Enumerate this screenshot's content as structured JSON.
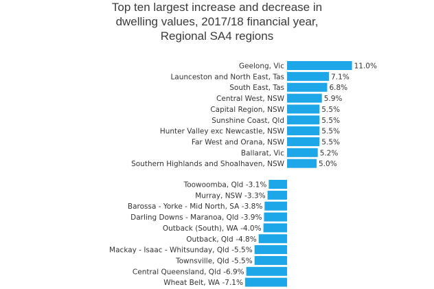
{
  "chart_data": {
    "type": "bar",
    "orientation": "horizontal",
    "title_lines": [
      "Top ten largest increase and decrease in",
      "dwelling values, 2017/18 financial year,",
      "Regional SA4 regions"
    ],
    "xlabel": "",
    "ylabel": "",
    "bar_color": "#1ea7e8",
    "grid": false,
    "legend": "none",
    "groups": [
      {
        "categories": [
          "Geelong, Vic",
          "Launceston and North East, Tas",
          "South East, Tas",
          "Central West, NSW",
          "Capital Region, NSW",
          "Sunshine Coast, Qld",
          "Hunter Valley exc Newcastle, NSW",
          "Far West and Orana, NSW",
          "Ballarat, Vic",
          "Southern Highlands and Shoalhaven, NSW"
        ],
        "values": [
          11.0,
          7.1,
          6.8,
          5.9,
          5.5,
          5.5,
          5.5,
          5.5,
          5.2,
          5.0
        ],
        "labels": [
          "11.0%",
          "7.1%",
          "6.8%",
          "5.9%",
          "5.5%",
          "5.5%",
          "5.5%",
          "5.5%",
          "5.2%",
          "5.0%"
        ]
      },
      {
        "categories": [
          "Toowoomba, Qld",
          "Murray, NSW",
          "Barossa - Yorke - Mid North, SA",
          "Darling Downs - Maranoa, Qld",
          "Outback (South), WA",
          "Outback, Qld",
          "Mackay - Isaac - Whitsunday, Qld",
          "Townsville, Qld",
          "Central Queensland, Qld",
          "Wheat Belt, WA"
        ],
        "values": [
          -3.1,
          -3.3,
          -3.8,
          -3.9,
          -4.0,
          -4.8,
          -5.5,
          -5.5,
          -6.9,
          -7.1
        ],
        "labels": [
          "-3.1%",
          "-3.3%",
          "-3.8%",
          "-3.9%",
          "-4.0%",
          "-4.8%",
          "-5.5%",
          "-5.5%",
          "-6.9%",
          "-7.1%"
        ]
      }
    ]
  }
}
